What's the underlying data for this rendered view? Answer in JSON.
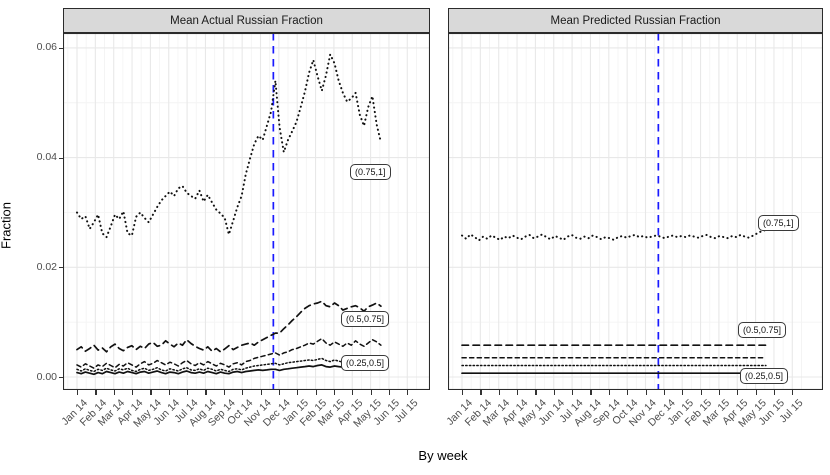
{
  "figure": {
    "y_axis": {
      "title": "Fraction",
      "tick_labels": [
        "0.00",
        "0.02",
        "0.04",
        "0.06"
      ],
      "tick_values": [
        0,
        0.02,
        0.04,
        0.06
      ],
      "minor_values": [
        0.01,
        0.03,
        0.05
      ]
    },
    "x_axis": {
      "title": "By week",
      "tick_labels": [
        "Jan 14",
        "Feb 14",
        "Mar 14",
        "Apr 14",
        "May 14",
        "Jun 14",
        "Jul 14",
        "Aug 14",
        "Sep 14",
        "Oct 14",
        "Nov 14",
        "Dec 14",
        "Jan 15",
        "Feb 15",
        "Mar 15",
        "Apr 15",
        "May 15",
        "Jun 15",
        "Jul 15"
      ]
    },
    "colors": {
      "vline": "#1a1aff",
      "strip_bg": "#d9d9d9",
      "panel_border": "#2b2b2b",
      "grid_major": "#e8e8e8",
      "grid_minor": "#f4f4f4",
      "series": "#111111",
      "axis_text": "#4d4d4d"
    }
  },
  "chart_data": [
    {
      "type": "line",
      "title": "Mean Actual Russian Fraction",
      "xlabel": "By week",
      "ylabel": "Fraction",
      "ylim": [
        0,
        0.062
      ],
      "x_tick_labels": [
        "Jan 14",
        "Feb 14",
        "Mar 14",
        "Apr 14",
        "May 14",
        "Jun 14",
        "Jul 14",
        "Aug 14",
        "Sep 14",
        "Oct 14",
        "Nov 14",
        "Dec 14",
        "Jan 15",
        "Feb 15",
        "Mar 15",
        "Apr 15",
        "May 15",
        "Jun 15",
        "Jul 15"
      ],
      "vline": {
        "x_month": 10.7,
        "style": "dashed",
        "color": "#1a1aff"
      },
      "series": [
        {
          "label": "(0.75,1]",
          "linetype": "dotted",
          "week_start": 0,
          "values": [
            0.03,
            0.0288,
            0.0293,
            0.027,
            0.0282,
            0.0296,
            0.0262,
            0.0255,
            0.0275,
            0.0296,
            0.0288,
            0.0302,
            0.0262,
            0.0258,
            0.0292,
            0.03,
            0.029,
            0.0282,
            0.0296,
            0.031,
            0.0322,
            0.033,
            0.0338,
            0.033,
            0.0344,
            0.0348,
            0.0336,
            0.033,
            0.0325,
            0.034,
            0.032,
            0.0332,
            0.0318,
            0.0305,
            0.0298,
            0.029,
            0.026,
            0.0285,
            0.031,
            0.033,
            0.037,
            0.0398,
            0.0425,
            0.044,
            0.0432,
            0.0458,
            0.0484,
            0.054,
            0.0455,
            0.041,
            0.0432,
            0.0448,
            0.0465,
            0.0492,
            0.052,
            0.0555,
            0.0578,
            0.0548,
            0.0522,
            0.055,
            0.0588,
            0.0572,
            0.054,
            0.0518,
            0.0502,
            0.0508,
            0.0518,
            0.0478,
            0.0458,
            0.0492,
            0.0512,
            0.046,
            0.0428
          ]
        },
        {
          "label": "(0.5,0.75]",
          "linetype": "longdash",
          "week_start": 0,
          "values": [
            0.005,
            0.0055,
            0.0047,
            0.0052,
            0.0058,
            0.0049,
            0.0053,
            0.0046,
            0.0055,
            0.006,
            0.0052,
            0.0048,
            0.0054,
            0.0057,
            0.005,
            0.0056,
            0.0052,
            0.006,
            0.0063,
            0.0056,
            0.0058,
            0.0066,
            0.006,
            0.0055,
            0.0062,
            0.0058,
            0.0068,
            0.0061,
            0.0056,
            0.0052,
            0.0049,
            0.0055,
            0.0047,
            0.0052,
            0.0046,
            0.0051,
            0.0057,
            0.005,
            0.0054,
            0.0058,
            0.006,
            0.0062,
            0.0058,
            0.0064,
            0.0068,
            0.0072,
            0.0076,
            0.008,
            0.008,
            0.0088,
            0.0095,
            0.0103,
            0.011,
            0.0118,
            0.0125,
            0.013,
            0.0133,
            0.0135,
            0.0138,
            0.013,
            0.0128,
            0.0135,
            0.013,
            0.0122,
            0.0125,
            0.0128,
            0.013,
            0.0126,
            0.012,
            0.0128,
            0.0131,
            0.0135,
            0.0129
          ]
        },
        {
          "label": null,
          "linetype": "dash",
          "week_start": 0,
          "values": [
            0.0022,
            0.0018,
            0.0024,
            0.002,
            0.0016,
            0.0022,
            0.0019,
            0.0025,
            0.0021,
            0.0017,
            0.0023,
            0.002,
            0.0026,
            0.0022,
            0.0018,
            0.0024,
            0.0028,
            0.0022,
            0.0025,
            0.003,
            0.0026,
            0.0022,
            0.0027,
            0.0024,
            0.002,
            0.0026,
            0.003,
            0.0024,
            0.0021,
            0.0026,
            0.0022,
            0.0028,
            0.0024,
            0.002,
            0.0025,
            0.0022,
            0.0018,
            0.0024,
            0.0026,
            0.0022,
            0.0028,
            0.003,
            0.0034,
            0.0036,
            0.0038,
            0.004,
            0.0042,
            0.0044,
            0.004,
            0.0044,
            0.0046,
            0.005,
            0.0052,
            0.0055,
            0.0058,
            0.0062,
            0.006,
            0.0065,
            0.007,
            0.0062,
            0.0058,
            0.0064,
            0.006,
            0.0056,
            0.0062,
            0.0058,
            0.0066,
            0.006,
            0.0056,
            0.0062,
            0.0068,
            0.0064,
            0.0058
          ]
        },
        {
          "label": null,
          "linetype": "dense-dot",
          "week_start": 0,
          "values": [
            0.0014,
            0.0011,
            0.0015,
            0.0012,
            0.001,
            0.0014,
            0.0012,
            0.0016,
            0.0013,
            0.0011,
            0.0015,
            0.0013,
            0.0016,
            0.0012,
            0.001,
            0.0014,
            0.0016,
            0.0012,
            0.0014,
            0.0017,
            0.0013,
            0.0011,
            0.0015,
            0.0013,
            0.0011,
            0.0015,
            0.0017,
            0.0013,
            0.0012,
            0.0015,
            0.0012,
            0.0016,
            0.0014,
            0.0011,
            0.0014,
            0.0012,
            0.001,
            0.0014,
            0.0015,
            0.0013,
            0.0016,
            0.0018,
            0.002,
            0.0021,
            0.0022,
            0.0023,
            0.0024,
            0.0025,
            0.0022,
            0.0024,
            0.0026,
            0.0027,
            0.0028,
            0.0029,
            0.003,
            0.0031,
            0.003,
            0.0032,
            0.0034,
            0.003,
            0.0028,
            0.0031,
            0.0029,
            0.0027,
            0.003,
            0.0028,
            0.0032,
            0.0029,
            0.0027,
            0.003,
            0.0033,
            0.0031,
            0.0029
          ]
        },
        {
          "label": "(0.25,0.5]",
          "linetype": "solid",
          "week_start": 0,
          "values": [
            0.0008,
            0.0006,
            0.0009,
            0.0007,
            0.0005,
            0.0008,
            0.0006,
            0.001,
            0.0008,
            0.0006,
            0.0009,
            0.0007,
            0.001,
            0.0008,
            0.0006,
            0.0009,
            0.001,
            0.0007,
            0.0009,
            0.0011,
            0.0008,
            0.0006,
            0.0009,
            0.0008,
            0.0006,
            0.0009,
            0.0011,
            0.0008,
            0.0007,
            0.0009,
            0.0007,
            0.001,
            0.0008,
            0.0006,
            0.0009,
            0.0007,
            0.0006,
            0.0009,
            0.001,
            0.0008,
            0.001,
            0.0011,
            0.0012,
            0.0013,
            0.0012,
            0.0013,
            0.0014,
            0.0014,
            0.0012,
            0.0014,
            0.0015,
            0.0016,
            0.0017,
            0.0018,
            0.0019,
            0.002,
            0.0019,
            0.0021,
            0.0022,
            0.0019,
            0.0018,
            0.002,
            0.0019,
            0.0018,
            0.002,
            0.0019,
            0.0021,
            0.0019,
            0.0018,
            0.002,
            0.0022,
            0.002,
            0.0019
          ]
        }
      ],
      "direct_labels": [
        {
          "text": "(0.75,1]",
          "x": 287,
          "y": 131
        },
        {
          "text": "(0.5,0.75]",
          "x": 278,
          "y": 278
        },
        {
          "text": "(0.25,0.5]",
          "x": 278,
          "y": 322
        }
      ]
    },
    {
      "type": "line",
      "title": "Mean Predicted Russian Fraction",
      "xlabel": "By week",
      "ylabel": "Fraction",
      "ylim": [
        0,
        0.062
      ],
      "x_tick_labels": [
        "Jan 14",
        "Feb 14",
        "Mar 14",
        "Apr 14",
        "May 14",
        "Jun 14",
        "Jul 14",
        "Aug 14",
        "Sep 14",
        "Oct 14",
        "Nov 14",
        "Dec 14",
        "Jan 15",
        "Feb 15",
        "Mar 15",
        "Apr 15",
        "May 15",
        "Jun 15",
        "Jul 15"
      ],
      "vline": {
        "x_month": 10.7,
        "style": "dashed",
        "color": "#1a1aff"
      },
      "series": [
        {
          "label": "(0.75,1]",
          "linetype": "dotted",
          "week_start": 0,
          "values": [
            0.0258,
            0.0252,
            0.026,
            0.0255,
            0.0249,
            0.0256,
            0.0252,
            0.0258,
            0.0254,
            0.025,
            0.0256,
            0.0253,
            0.0258,
            0.0254,
            0.0251,
            0.0256,
            0.0259,
            0.0253,
            0.0256,
            0.026,
            0.0255,
            0.0251,
            0.0257,
            0.0254,
            0.025,
            0.0256,
            0.0259,
            0.0254,
            0.0252,
            0.0256,
            0.0253,
            0.0258,
            0.0255,
            0.0251,
            0.0255,
            0.0253,
            0.025,
            0.0255,
            0.0257,
            0.0254,
            0.0257,
            0.0259,
            0.0255,
            0.0257,
            0.0254,
            0.0256,
            0.0258,
            0.0256,
            0.0253,
            0.0256,
            0.0258,
            0.0255,
            0.0257,
            0.0255,
            0.0258,
            0.0256,
            0.0254,
            0.0257,
            0.0259,
            0.0255,
            0.0253,
            0.0257,
            0.0255,
            0.0253,
            0.0257,
            0.0255,
            0.0259,
            0.0256,
            0.0254,
            0.0258,
            0.0262,
            0.0266,
            0.0268
          ]
        },
        {
          "label": "(0.5,0.75]",
          "linetype": "longdash",
          "flat": 0.0058,
          "weeks": [
            0,
            72
          ]
        },
        {
          "label": null,
          "linetype": "dash",
          "flat": 0.0035,
          "weeks": [
            0,
            72
          ]
        },
        {
          "label": null,
          "linetype": "dense-dot",
          "flat": 0.0021,
          "weeks": [
            0,
            72
          ]
        },
        {
          "label": "(0.25,0.5]",
          "linetype": "solid",
          "flat": 0.0007,
          "weeks": [
            0,
            72
          ]
        }
      ],
      "direct_labels": [
        {
          "text": "(0.75,1]",
          "x": 310,
          "y": 182
        },
        {
          "text": "(0.5,0.75]",
          "x": 290,
          "y": 289
        },
        {
          "text": "(0.25,0.5]",
          "x": 292,
          "y": 335
        }
      ]
    }
  ]
}
